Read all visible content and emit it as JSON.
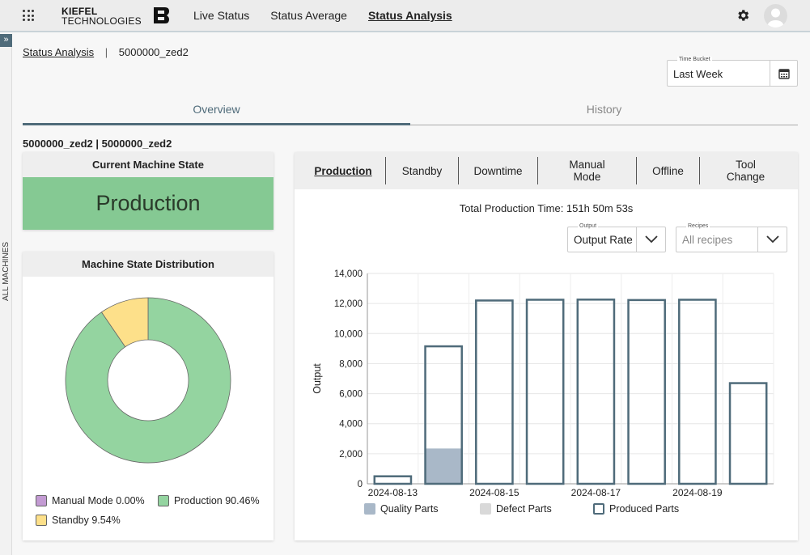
{
  "header": {
    "logo_line1": "KIEFEL",
    "logo_line2": "TECHNOLOGIES",
    "nav": [
      {
        "label": "Live Status",
        "active": false
      },
      {
        "label": "Status Average",
        "active": false
      },
      {
        "label": "Status Analysis",
        "active": true
      }
    ],
    "icons": {
      "apps": "grid-icon",
      "settings": "gear-icon",
      "user": "avatar-icon"
    }
  },
  "sidebar": {
    "toggle": "»",
    "label": "ALL MACHINES"
  },
  "breadcrumb": {
    "parent": "Status Analysis",
    "current": "5000000_zed2"
  },
  "time_bucket": {
    "label": "Time Bucket",
    "value": "Last Week"
  },
  "tabs": {
    "overview": "Overview",
    "history": "History"
  },
  "machine_title": "5000000_zed2 | 5000000_zed2",
  "current_state": {
    "title": "Current Machine State",
    "value": "Production",
    "color": "#85c993"
  },
  "distribution": {
    "title": "Machine State Distribution",
    "legend": [
      {
        "label": "Manual Mode 0.00%",
        "color": "#c39bd3"
      },
      {
        "label": "Production 90.46%",
        "color": "#94d4a0"
      },
      {
        "label": "Standby 9.54%",
        "color": "#fde08a"
      }
    ],
    "slices": [
      {
        "name": "Manual Mode",
        "percent": 0.0,
        "color": "#c39bd3"
      },
      {
        "name": "Production",
        "percent": 90.46,
        "color": "#94d4a0"
      },
      {
        "name": "Standby",
        "percent": 9.54,
        "color": "#fde08a"
      }
    ]
  },
  "chart_tabs": [
    {
      "label": "Production",
      "active": true
    },
    {
      "label": "Standby",
      "active": false
    },
    {
      "label": "Downtime",
      "active": false
    },
    {
      "label": "Manual Mode",
      "active": false
    },
    {
      "label": "Offline",
      "active": false
    },
    {
      "label": "Tool Change",
      "active": false
    }
  ],
  "total_text": "Total Production Time: 151h 50m 53s",
  "output_select": {
    "label": "Output",
    "value": "Output Rate"
  },
  "recipes_select": {
    "label": "Recipes",
    "value": "All recipes"
  },
  "chart_data": {
    "type": "bar",
    "categories": [
      "2024-08-13",
      "2024-08-14",
      "2024-08-15",
      "2024-08-16",
      "2024-08-17",
      "2024-08-18",
      "2024-08-19",
      "2024-08-20"
    ],
    "x_tick_labels": [
      "2024-08-13",
      "2024-08-15",
      "2024-08-17",
      "2024-08-19"
    ],
    "ylabel": "Output",
    "ylim": [
      0,
      14000
    ],
    "yticks": [
      0,
      2000,
      4000,
      6000,
      8000,
      10000,
      12000,
      14000
    ],
    "ytick_labels": [
      "0",
      "2,000",
      "4,000",
      "6,000",
      "8,000",
      "10,000",
      "12,000",
      "14,000"
    ],
    "series": [
      {
        "name": "Quality Parts",
        "color": "#a9b8c8",
        "values": [
          0,
          2350,
          0,
          0,
          0,
          0,
          0,
          0
        ]
      },
      {
        "name": "Defect Parts",
        "color": "#d9d9d9",
        "values": [
          0,
          0,
          0,
          0,
          0,
          0,
          0,
          0
        ]
      },
      {
        "name": "Produced Parts",
        "color": "#4f6b7a",
        "values": [
          500,
          9150,
          12200,
          12250,
          12260,
          12230,
          12250,
          6700
        ]
      }
    ],
    "grid": true,
    "legend_position": "bottom"
  }
}
